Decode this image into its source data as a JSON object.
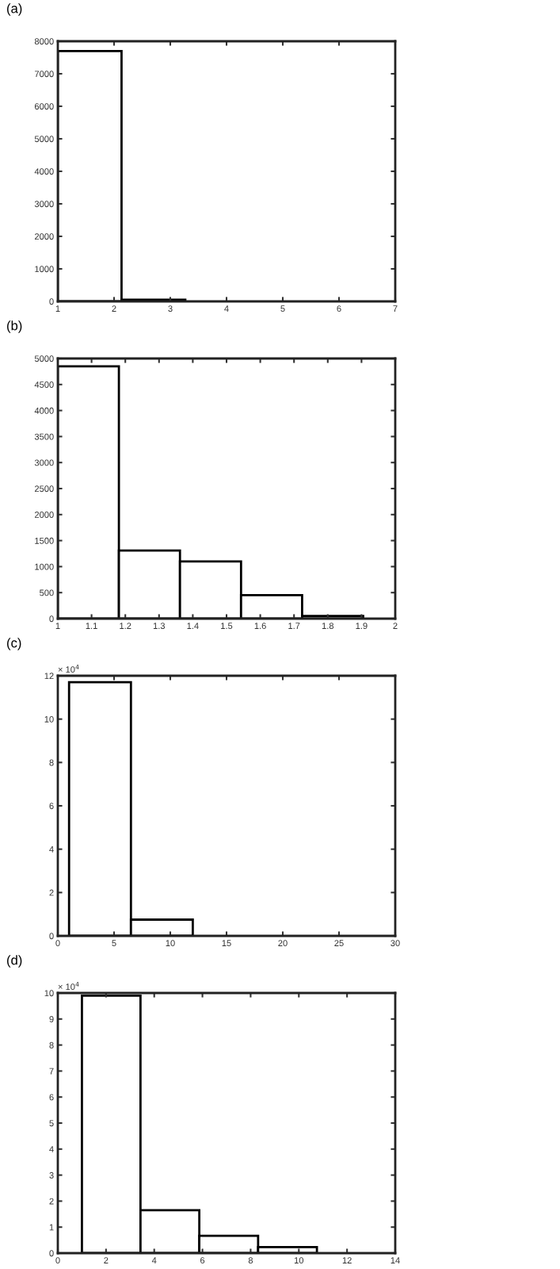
{
  "chart_data": [
    {
      "type": "histogram",
      "title": "(a)",
      "bins": [
        1,
        2.133,
        3.267,
        4.4,
        5.533,
        6.667
      ],
      "values": [
        7700,
        50,
        null,
        null,
        null
      ],
      "color": "#ffffff",
      "xlim": [
        1,
        7
      ],
      "xticks": [
        1,
        2,
        3,
        4,
        5,
        6,
        7
      ],
      "ylim": [
        0,
        8000
      ],
      "yticks": [
        0,
        1000,
        2000,
        3000,
        4000,
        5000,
        6000,
        7000,
        8000
      ],
      "grid": false
    },
    {
      "type": "histogram",
      "title": "(b)",
      "bins": [
        1,
        1.181,
        1.362,
        1.543,
        1.724,
        1.905
      ],
      "values": [
        4850,
        1310,
        1100,
        450,
        50
      ],
      "color": "#ffffff",
      "xlim": [
        1,
        2
      ],
      "xticks": [
        1,
        1.1,
        1.2,
        1.3,
        1.4,
        1.5,
        1.6,
        1.7,
        1.8,
        1.9,
        2
      ],
      "ylim": [
        0,
        5000
      ],
      "yticks": [
        0,
        500,
        1000,
        1500,
        2000,
        2500,
        3000,
        3500,
        4000,
        4500,
        5000
      ],
      "grid": false
    },
    {
      "type": "histogram",
      "title": "(c)",
      "annotations": [
        "× 10$^{4}$"
      ],
      "bins": [
        1,
        6.5,
        12,
        17.5
      ],
      "values": [
        11.7,
        0.75,
        null
      ],
      "color": "#ffffff",
      "xlim": [
        0,
        30
      ],
      "xticks": [
        0,
        5,
        10,
        15,
        20,
        25,
        30
      ],
      "ylim": [
        0,
        12
      ],
      "yticks": [
        0,
        2,
        4,
        6,
        8,
        10,
        12
      ],
      "grid": false
    },
    {
      "type": "histogram",
      "title": "(d)",
      "annotations": [
        "× 10$^{4}$"
      ],
      "bins": [
        1,
        3.43,
        5.87,
        8.31,
        10.75,
        13.19
      ],
      "values": [
        9.9,
        1.65,
        0.67,
        0.23,
        null
      ],
      "color": "#ffffff",
      "xlim": [
        0,
        14
      ],
      "xticks": [
        0,
        2,
        4,
        6,
        8,
        10,
        12,
        14
      ],
      "ylim": [
        0,
        10
      ],
      "yticks": [
        0,
        1,
        2,
        3,
        4,
        5,
        6,
        7,
        8,
        9,
        10
      ],
      "grid": false
    }
  ]
}
